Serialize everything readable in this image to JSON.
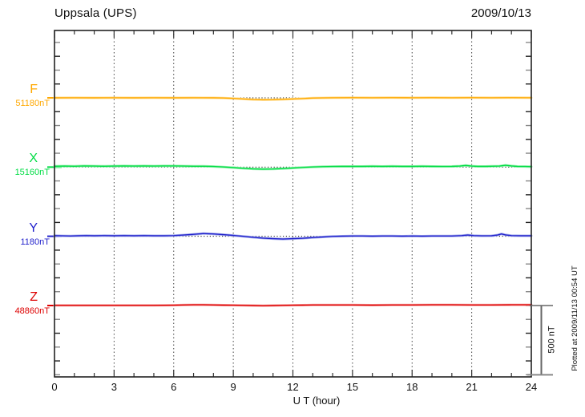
{
  "page": {
    "title": "Uppsala (UPS)",
    "date": "2009/10/13",
    "xaxis_title": "U T (hour)",
    "scale_bar_label": "500 nT",
    "plotted_at": "Plotted at 2009/11/13 00:54 UT"
  },
  "chart_data": {
    "type": "line",
    "title": "Uppsala (UPS)",
    "date": "2009/10/13",
    "xlabel": "U T (hour)",
    "x_range": [
      0,
      24
    ],
    "x_major_ticks": [
      0,
      3,
      6,
      9,
      12,
      15,
      18,
      21,
      24
    ],
    "x_minor_tick_step_hours": 1,
    "grid": "vertical dotted lines at 3-hour intervals",
    "y_tick_interval_nT": 100,
    "y_baseline_separation_nT": 500,
    "scale_bar": {
      "label": "500 nT",
      "value_nT": 500
    },
    "plotted_at": "Plotted at 2009/11/13 00:54 UT",
    "series": [
      {
        "name": "F",
        "baseline_label": "51180nT",
        "baseline_nT": 51180,
        "color": "#FFA800",
        "light_color": "#FFE099",
        "points": [
          [
            0,
            0
          ],
          [
            1,
            0.5
          ],
          [
            2,
            0
          ],
          [
            3,
            0.5
          ],
          [
            4,
            0
          ],
          [
            5,
            0.5
          ],
          [
            6,
            0
          ],
          [
            7,
            0.5
          ],
          [
            8,
            0
          ],
          [
            8.5,
            -1
          ],
          [
            9,
            -4
          ],
          [
            9.5,
            -8
          ],
          [
            10,
            -12
          ],
          [
            10.5,
            -14
          ],
          [
            11,
            -13.5
          ],
          [
            11.5,
            -11
          ],
          [
            12,
            -8
          ],
          [
            12.5,
            -5
          ],
          [
            13,
            -2
          ],
          [
            13.5,
            -0.5
          ],
          [
            14,
            0.5
          ],
          [
            15,
            1
          ],
          [
            16,
            0.5
          ],
          [
            17,
            1
          ],
          [
            18,
            0.5
          ],
          [
            19,
            1
          ],
          [
            20,
            0.5
          ],
          [
            21,
            1
          ],
          [
            22,
            0.5
          ],
          [
            23,
            1
          ],
          [
            24,
            0.5
          ]
        ]
      },
      {
        "name": "X",
        "baseline_label": "15160nT",
        "baseline_nT": 15160,
        "color": "#00DD44",
        "light_color": "#9CF2B4",
        "points": [
          [
            0,
            6
          ],
          [
            0.5,
            7
          ],
          [
            1,
            6
          ],
          [
            1.5,
            8
          ],
          [
            2,
            7
          ],
          [
            2.5,
            6
          ],
          [
            3,
            7
          ],
          [
            3.5,
            8
          ],
          [
            4,
            7
          ],
          [
            4.5,
            8
          ],
          [
            5,
            7
          ],
          [
            5.5,
            8
          ],
          [
            6,
            8
          ],
          [
            6.5,
            7
          ],
          [
            7,
            6
          ],
          [
            7.5,
            6
          ],
          [
            8,
            4
          ],
          [
            8.5,
            1
          ],
          [
            9,
            -4
          ],
          [
            9.5,
            -9
          ],
          [
            10,
            -13
          ],
          [
            10.5,
            -15
          ],
          [
            11,
            -14
          ],
          [
            11.5,
            -11
          ],
          [
            12,
            -7
          ],
          [
            12.5,
            -3
          ],
          [
            13,
            1
          ],
          [
            13.5,
            3
          ],
          [
            14,
            4
          ],
          [
            14.5,
            5
          ],
          [
            15,
            5
          ],
          [
            15.5,
            5
          ],
          [
            16,
            6
          ],
          [
            16.5,
            5
          ],
          [
            17,
            6
          ],
          [
            17.5,
            5
          ],
          [
            18,
            5
          ],
          [
            18.5,
            6
          ],
          [
            19,
            5
          ],
          [
            19.5,
            4
          ],
          [
            20,
            5
          ],
          [
            20.4,
            7
          ],
          [
            20.7,
            12
          ],
          [
            21,
            7
          ],
          [
            21.3,
            5
          ],
          [
            21.7,
            5
          ],
          [
            22,
            6
          ],
          [
            22.4,
            7
          ],
          [
            22.7,
            13
          ],
          [
            23,
            8
          ],
          [
            23.3,
            5
          ],
          [
            23.7,
            4
          ],
          [
            24,
            3
          ]
        ]
      },
      {
        "name": "Y",
        "baseline_label": "1180nT",
        "baseline_nT": 1180,
        "color": "#2222CC",
        "light_color": "#A8B0EE",
        "points": [
          [
            0,
            5
          ],
          [
            0.4,
            3
          ],
          [
            0.8,
            2
          ],
          [
            1.2,
            4
          ],
          [
            1.6,
            5
          ],
          [
            2,
            4
          ],
          [
            2.5,
            5
          ],
          [
            3,
            4
          ],
          [
            3.5,
            5
          ],
          [
            4,
            4
          ],
          [
            4.5,
            5
          ],
          [
            5,
            4
          ],
          [
            5.5,
            4
          ],
          [
            6,
            5
          ],
          [
            6.5,
            9
          ],
          [
            7,
            14
          ],
          [
            7.5,
            20
          ],
          [
            8,
            17
          ],
          [
            8.5,
            12
          ],
          [
            9,
            6
          ],
          [
            9.5,
            0
          ],
          [
            10,
            -7
          ],
          [
            10.5,
            -13
          ],
          [
            11,
            -17
          ],
          [
            11.5,
            -20
          ],
          [
            12,
            -17
          ],
          [
            12.5,
            -14
          ],
          [
            13,
            -9
          ],
          [
            13.5,
            -5
          ],
          [
            14,
            -1
          ],
          [
            14.5,
            1
          ],
          [
            15,
            2
          ],
          [
            15.5,
            2
          ],
          [
            16,
            1
          ],
          [
            16.5,
            2
          ],
          [
            17,
            2
          ],
          [
            17.5,
            1
          ],
          [
            18,
            2
          ],
          [
            18.5,
            1
          ],
          [
            19,
            2
          ],
          [
            19.5,
            2
          ],
          [
            20,
            2
          ],
          [
            20.5,
            5
          ],
          [
            20.8,
            9
          ],
          [
            21.1,
            5
          ],
          [
            21.5,
            3
          ],
          [
            22,
            4
          ],
          [
            22.3,
            9
          ],
          [
            22.5,
            17
          ],
          [
            22.7,
            10
          ],
          [
            23,
            5
          ],
          [
            23.5,
            4
          ],
          [
            24,
            4
          ]
        ]
      },
      {
        "name": "Z",
        "baseline_label": "48860nT",
        "baseline_nT": 48860,
        "color": "#DD0000",
        "light_color": "#F7A8A8",
        "points": [
          [
            0,
            1
          ],
          [
            1,
            1
          ],
          [
            2,
            1
          ],
          [
            3,
            1
          ],
          [
            4,
            1
          ],
          [
            5,
            1
          ],
          [
            6,
            2
          ],
          [
            6.5,
            4
          ],
          [
            7,
            5
          ],
          [
            7.5,
            5
          ],
          [
            8,
            4
          ],
          [
            8.5,
            3
          ],
          [
            9,
            2
          ],
          [
            9.5,
            1
          ],
          [
            10,
            0
          ],
          [
            10.5,
            -1
          ],
          [
            11,
            0
          ],
          [
            11.5,
            1
          ],
          [
            12,
            2
          ],
          [
            12.5,
            3
          ],
          [
            13,
            4
          ],
          [
            13.5,
            4
          ],
          [
            14,
            4
          ],
          [
            15,
            4
          ],
          [
            16,
            3
          ],
          [
            17,
            4
          ],
          [
            18,
            4
          ],
          [
            19,
            5
          ],
          [
            20,
            5
          ],
          [
            21,
            4
          ],
          [
            22,
            4
          ],
          [
            23,
            5
          ],
          [
            24,
            5
          ]
        ]
      }
    ]
  }
}
